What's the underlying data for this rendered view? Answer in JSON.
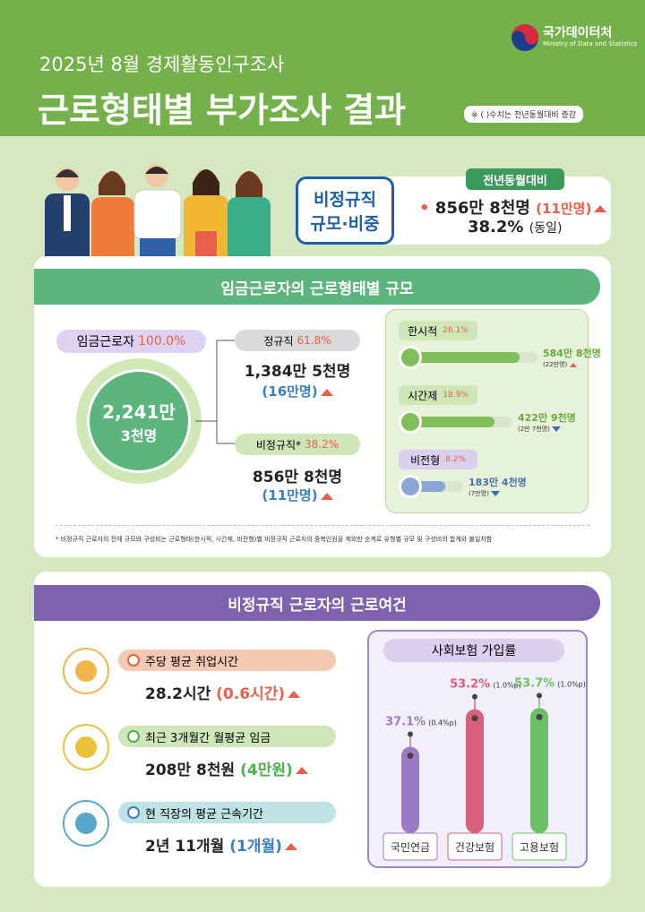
{
  "header": {
    "subtitle": "2025년 8월 경제활동인구조사",
    "title": "근로형태별 부가조사 결과",
    "note": "※ ( )수치는 전년동월대비 증감",
    "logo": {
      "name": "국가데이터처",
      "english": "Ministry of Data and Statistics"
    }
  },
  "summary": {
    "label_line1": "비정규직",
    "label_line2": "규모·비중",
    "badge": "전년동월대비",
    "size": "856만 8천명",
    "size_change": "(11만명)",
    "share": "38.2%",
    "share_change": "(동일)"
  },
  "section1": {
    "title": "임금근로자의 근로형태별 규모",
    "total": {
      "label": "임금근로자",
      "share": "100.0%",
      "value_line1": "2,241만",
      "value_line2": "3천명"
    },
    "regular": {
      "label": "정규직",
      "share": "61.8%",
      "value": "1,384만 5천명",
      "change": "(16만명)"
    },
    "nonregular": {
      "label": "비정규직*",
      "share": "38.2%",
      "value": "856만 8천명",
      "change": "(11만명)"
    },
    "types": [
      {
        "label": "한시적",
        "share": "26.1%",
        "value": "584만 8천명",
        "change": "(22만명)"
      },
      {
        "label": "시간제",
        "share": "18.9%",
        "value": "422만 9천명",
        "change": "(2만 7천명)"
      },
      {
        "label": "비전형",
        "share": "8.2%",
        "value": "183만 4천명",
        "change": "(7만명)"
      }
    ],
    "footnote": "* 비정규직 근로자의 전체 규모와 구성비는 근로형태(한시적, 시간제, 비전형)별 비정규직 근로자의 중복인원을 제외한 순계로 유형별 규모 및 구성비의 합계와 불일치함"
  },
  "section2": {
    "title": "비정규직 근로자의 근로여건",
    "items": [
      {
        "label": "주당 평균 취업시간",
        "value": "28.2시간",
        "change": "(0.6시간)"
      },
      {
        "label": "최근 3개월간 월평균 임금",
        "value": "208만 8천원",
        "change": "(4만원)"
      },
      {
        "label": "현 직장의 평균 근속기간",
        "value": "2년 11개월",
        "change": "(1개월)"
      }
    ],
    "insurance": {
      "title": "사회보험 가입률",
      "categories": [
        "국민연금",
        "건강보험",
        "고용보험"
      ],
      "values": [
        37.1,
        53.2,
        53.7
      ],
      "value_labels": [
        "37.1%",
        "53.2%",
        "53.7%"
      ],
      "changes": [
        "(0.4%p)",
        "(1.0%p)",
        "(1.0%p)"
      ],
      "colors": [
        "#9b7cc4",
        "#d9607a",
        "#6cc06a"
      ]
    }
  }
}
